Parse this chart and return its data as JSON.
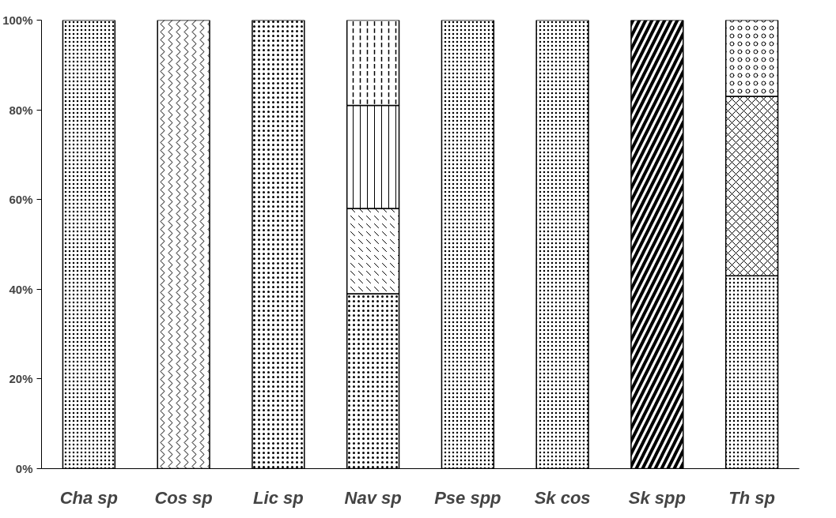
{
  "chart_data": {
    "type": "bar",
    "stacked": true,
    "categories": [
      "Cha sp",
      "Cos sp",
      "Lic sp",
      "Nav sp",
      "Pse spp",
      "Sk cos",
      "Sk spp",
      "Th sp"
    ],
    "series": [
      {
        "color": "#000000",
        "values": [
          100,
          null,
          null,
          null,
          100,
          100,
          null,
          43
        ]
      },
      {
        "color": "#000000",
        "values": [
          null,
          100,
          null,
          null,
          null,
          null,
          null,
          null
        ]
      },
      {
        "color": "#000000",
        "values": [
          null,
          null,
          100,
          39,
          null,
          null,
          null,
          null
        ]
      },
      {
        "color": "#000000",
        "values": [
          null,
          null,
          null,
          19,
          null,
          null,
          null,
          null
        ]
      },
      {
        "color": "#000000",
        "values": [
          null,
          null,
          null,
          23,
          null,
          null,
          null,
          null
        ]
      },
      {
        "color": "#000000",
        "values": [
          null,
          null,
          null,
          19,
          null,
          null,
          null,
          null
        ]
      },
      {
        "color": "#000000",
        "values": [
          null,
          null,
          null,
          null,
          null,
          null,
          100,
          null
        ]
      },
      {
        "color": "#000000",
        "values": [
          null,
          null,
          null,
          null,
          null,
          null,
          null,
          40
        ]
      },
      {
        "color": "#000000",
        "values": [
          null,
          null,
          null,
          null,
          null,
          null,
          null,
          17
        ]
      }
    ],
    "ylim": [
      0,
      100
    ],
    "yticks": [
      {
        "value": 0,
        "label": "0%"
      },
      {
        "value": 20,
        "label": "20%"
      },
      {
        "value": 40,
        "label": "40%"
      },
      {
        "value": 60,
        "label": "60%"
      },
      {
        "value": 80,
        "label": "80%"
      },
      {
        "value": 100,
        "label": "100%"
      }
    ],
    "grid": false
  }
}
